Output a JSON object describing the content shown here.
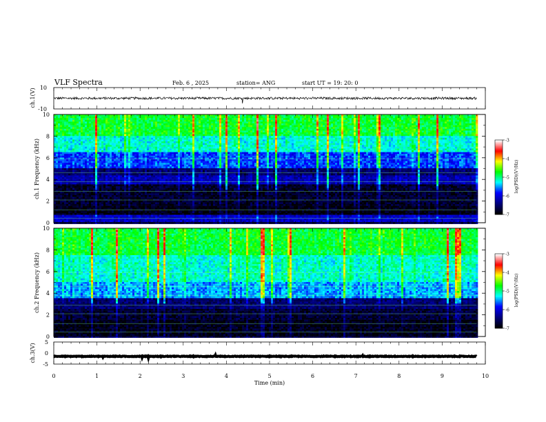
{
  "header": {
    "title": "VLF Spectra",
    "date": "Feb. 6  , 2025",
    "station": "station= ANG",
    "start": "start  UT  =    19: 20: 0"
  },
  "chart_data": [
    {
      "type": "line",
      "panel": "ch1-waveform",
      "ylabel": "ch.1(V)",
      "ylim": [
        -10,
        10
      ],
      "yticks": [
        "10",
        "-10"
      ],
      "x_range": [
        0,
        9.8
      ],
      "level": 0,
      "series": [
        {
          "color": "#000000"
        }
      ]
    },
    {
      "type": "heatmap",
      "panel": "ch1-spectrogram",
      "ylabel": "ch.1 Frequency  (kHz)",
      "ylim": [
        0,
        10
      ],
      "yticks": [
        "0",
        "2",
        "4",
        "6",
        "8",
        "10"
      ],
      "x_range": [
        0,
        9.8
      ],
      "colorbar": {
        "label": "log(PSD)(V²/Hz)",
        "range": [
          -7,
          -3
        ],
        "ticks": [
          "-3",
          "-4",
          "-5",
          "-6",
          "-7"
        ]
      },
      "bands": [
        {
          "from": 0,
          "to": 0.7,
          "level": 0.22
        },
        {
          "from": 0.7,
          "to": 1.5,
          "level": 0.02
        },
        {
          "from": 1.5,
          "to": 3.5,
          "level": 0.05
        },
        {
          "from": 3.5,
          "to": 4.4,
          "level": 0.2
        },
        {
          "from": 4.4,
          "to": 5.0,
          "level": 0.12
        },
        {
          "from": 5.0,
          "to": 6.5,
          "level": 0.32
        },
        {
          "from": 6.5,
          "to": 8.0,
          "level": 0.45
        },
        {
          "from": 8.0,
          "to": 10.0,
          "level": 0.55
        }
      ]
    },
    {
      "type": "heatmap",
      "panel": "ch2-spectrogram",
      "ylabel": "ch.2 Frequency  (kHz)",
      "ylim": [
        0,
        10
      ],
      "yticks": [
        "0",
        "2",
        "4",
        "6",
        "8",
        "10"
      ],
      "x_range": [
        0,
        9.8
      ],
      "colorbar": {
        "label": "log(PSD)(V²/Hz)",
        "range": [
          -7,
          -3
        ],
        "ticks": [
          "-3",
          "-4",
          "-5",
          "-6",
          "-7"
        ]
      },
      "bands": [
        {
          "from": 0,
          "to": 1.5,
          "level": 0.03
        },
        {
          "from": 1.5,
          "to": 2.5,
          "level": 0.06
        },
        {
          "from": 2.5,
          "to": 3.5,
          "level": 0.12
        },
        {
          "from": 3.5,
          "to": 5.0,
          "level": 0.38
        },
        {
          "from": 5.0,
          "to": 7.5,
          "level": 0.46
        },
        {
          "from": 7.5,
          "to": 10.0,
          "level": 0.55
        }
      ]
    },
    {
      "type": "line",
      "panel": "ch3-waveform",
      "ylabel": "ch.3(V)",
      "ylim": [
        -5,
        5
      ],
      "yticks": [
        "5",
        "0",
        "-5"
      ],
      "x_range": [
        0,
        9.8
      ],
      "level": -1.5,
      "series": [
        {
          "color": "#000000"
        }
      ]
    }
  ],
  "x_axis": {
    "label": "Time  (min)",
    "range": [
      0,
      10
    ],
    "ticks": [
      "0",
      "1",
      "2",
      "3",
      "4",
      "5",
      "6",
      "7",
      "8",
      "9",
      "10"
    ]
  },
  "colors": {
    "colormap": [
      "#000000",
      "#000080",
      "#0000ff",
      "#00ffff",
      "#00ff00",
      "#ffff00",
      "#ff0000",
      "#ffffff"
    ]
  }
}
